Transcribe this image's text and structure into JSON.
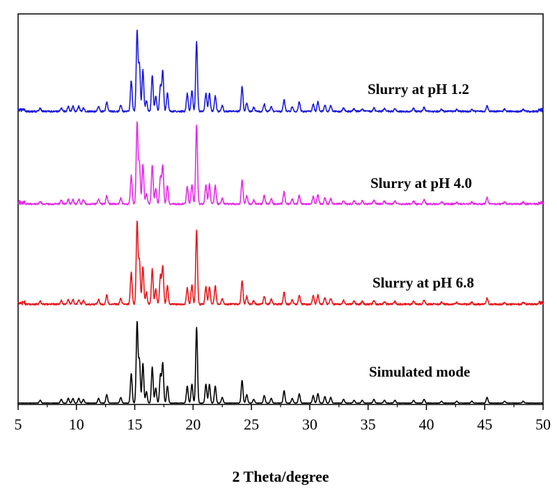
{
  "chart_data": {
    "type": "line",
    "xlabel": "2 Theta/degree",
    "ylabel": "",
    "xlim": [
      5,
      50
    ],
    "xticks": [
      5,
      10,
      15,
      20,
      25,
      30,
      35,
      40,
      45,
      50
    ],
    "grid": false,
    "legend": "none",
    "peaks": [
      [
        6.9,
        0.03
      ],
      [
        8.7,
        0.04
      ],
      [
        9.3,
        0.05
      ],
      [
        9.7,
        0.05
      ],
      [
        10.2,
        0.05
      ],
      [
        10.6,
        0.04
      ],
      [
        11.9,
        0.05
      ],
      [
        12.6,
        0.09
      ],
      [
        13.8,
        0.06
      ],
      [
        14.7,
        0.31
      ],
      [
        15.2,
        0.85
      ],
      [
        15.4,
        0.45
      ],
      [
        15.7,
        0.42
      ],
      [
        16.0,
        0.12
      ],
      [
        16.5,
        0.38
      ],
      [
        16.8,
        0.16
      ],
      [
        17.2,
        0.3
      ],
      [
        17.4,
        0.42
      ],
      [
        17.8,
        0.18
      ],
      [
        19.5,
        0.18
      ],
      [
        19.9,
        0.2
      ],
      [
        20.3,
        0.8
      ],
      [
        21.1,
        0.2
      ],
      [
        21.4,
        0.2
      ],
      [
        21.9,
        0.18
      ],
      [
        22.5,
        0.06
      ],
      [
        24.2,
        0.24
      ],
      [
        24.6,
        0.09
      ],
      [
        25.2,
        0.04
      ],
      [
        26.1,
        0.08
      ],
      [
        26.7,
        0.05
      ],
      [
        27.8,
        0.13
      ],
      [
        28.5,
        0.05
      ],
      [
        29.1,
        0.1
      ],
      [
        30.3,
        0.08
      ],
      [
        30.7,
        0.1
      ],
      [
        31.3,
        0.07
      ],
      [
        31.8,
        0.06
      ],
      [
        32.9,
        0.04
      ],
      [
        33.8,
        0.03
      ],
      [
        34.5,
        0.03
      ],
      [
        35.5,
        0.04
      ],
      [
        36.4,
        0.03
      ],
      [
        37.3,
        0.03
      ],
      [
        38.9,
        0.03
      ],
      [
        39.8,
        0.04
      ],
      [
        41.3,
        0.02
      ],
      [
        42.6,
        0.02
      ],
      [
        43.9,
        0.02
      ],
      [
        45.2,
        0.06
      ],
      [
        46.7,
        0.02
      ],
      [
        48.3,
        0.02
      ]
    ],
    "series": [
      {
        "name": "Simulated mode",
        "label": "Simulated mode",
        "color": "#000000",
        "offset": 0,
        "noise": 0.0
      },
      {
        "name": "Slurry at pH 6.8",
        "label": "Slurry at pH 6.8",
        "color": "#e8161b",
        "offset": 1,
        "noise": 1.0
      },
      {
        "name": "Slurry at pH 4.0",
        "label": "Slurry at pH 4.0",
        "color": "#e62ae6",
        "offset": 2,
        "noise": 1.0
      },
      {
        "name": "Slurry at pH 1.2",
        "label": "Slurry at pH 1.2",
        "color": "#1a1adc",
        "offset": 3,
        "noise": 1.0
      }
    ]
  }
}
